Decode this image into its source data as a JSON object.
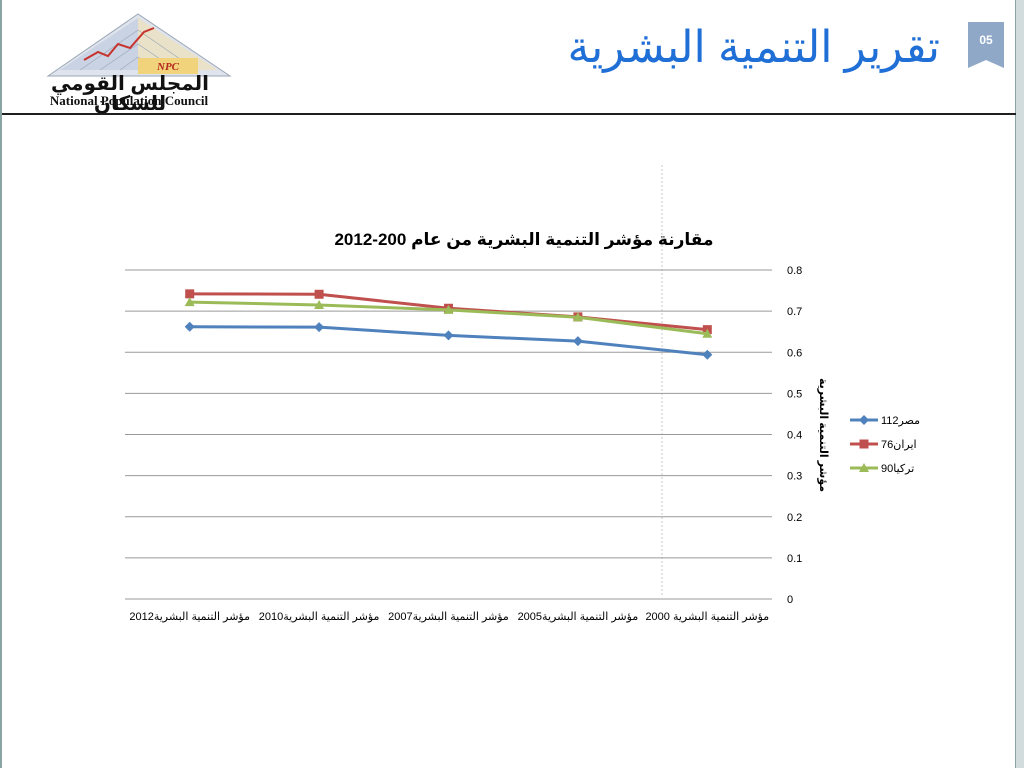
{
  "header": {
    "title": "تقرير التنمية البشرية",
    "page_number": "05",
    "logo_text_ar": "المجلس القومي للسكان",
    "logo_text_en": "National Population Council",
    "logo_badge": "NPC"
  },
  "colors": {
    "title": "#1f6fd6",
    "badge": "#8fa8c8"
  },
  "chart_data": {
    "type": "line",
    "title": "مقارنة مؤشر التنمية البشرية من عام 200-2012",
    "ylabel": "مؤشر التنمية البشرية",
    "xlabel": "",
    "ylim": [
      0,
      0.8
    ],
    "y_ticks": [
      "0",
      "0.1",
      "0.2",
      "0.3",
      "0.4",
      "0.5",
      "0.6",
      "0.7",
      "0.8"
    ],
    "grid": true,
    "legend_position": "right",
    "categories": [
      "مؤشر التنمية البشرية 2000",
      "مؤشر التنمية البشرية2005",
      "مؤشر التنمية البشرية2007",
      "مؤشر التنمية البشرية2010",
      "مؤشر التنمية البشرية2012"
    ],
    "series": [
      {
        "name": "مصر112",
        "color": "#4f81bd",
        "marker": "diamond",
        "values": [
          0.594,
          0.627,
          0.641,
          0.661,
          0.662
        ]
      },
      {
        "name": "ايران76",
        "color": "#c0504d",
        "marker": "square",
        "values": [
          0.655,
          0.686,
          0.707,
          0.741,
          0.742
        ]
      },
      {
        "name": "تركيا90",
        "color": "#9bbb59",
        "marker": "triangle",
        "values": [
          0.645,
          0.685,
          0.703,
          0.715,
          0.722
        ]
      }
    ]
  }
}
